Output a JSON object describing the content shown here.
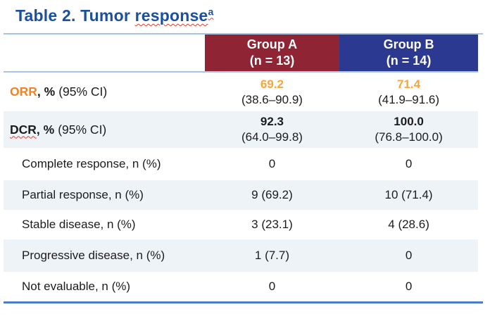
{
  "title": {
    "prefix": "Table 2. Tumor ",
    "underlined_word": "response",
    "superscript": "a"
  },
  "colors": {
    "title_blue": "#1B4FA0",
    "group_a_header_red": "#8E2434",
    "group_b_header_blue": "#2B3990",
    "orr_label_orange": "#F5821F",
    "orr_value_orange": "#F9A43C",
    "shaded_row_bg": "#EEF3F8",
    "header_rule_light_blue": "#A6C5E8",
    "bottom_rule_blue": "#4A7CC7",
    "spellcheck_squiggle_red": "#E03C31"
  },
  "table": {
    "columns": [
      {
        "line1": "Group A",
        "line2": "(n = 13)"
      },
      {
        "line1": "Group B",
        "line2": "(n = 14)"
      }
    ],
    "rows": [
      {
        "name": "ORR",
        "pct": ", %",
        "ci_label": "(95% CI)",
        "a": "69.2",
        "a_ci": "(38.6–90.9)",
        "b": "71.4",
        "b_ci": "(41.9–91.6)"
      },
      {
        "name": "DCR",
        "pct": ", %",
        "ci_label": "(95% CI)",
        "a": "92.3",
        "a_ci": "(64.0–99.8)",
        "b": "100.0",
        "b_ci": "(76.8–100.0)"
      },
      {
        "label": "Complete response, n (%)",
        "a": "0",
        "b": "0"
      },
      {
        "label": "Partial response, n (%)",
        "a": "9 (69.2)",
        "b": "10 (71.4)"
      },
      {
        "label": "Stable disease, n (%)",
        "a": "3 (23.1)",
        "b": "4 (28.6)"
      },
      {
        "label": "Progressive disease, n (%)",
        "a": "1 (7.7)",
        "b": "0"
      },
      {
        "label": "Not evaluable, n (%)",
        "a": "0",
        "b": "0"
      }
    ]
  }
}
